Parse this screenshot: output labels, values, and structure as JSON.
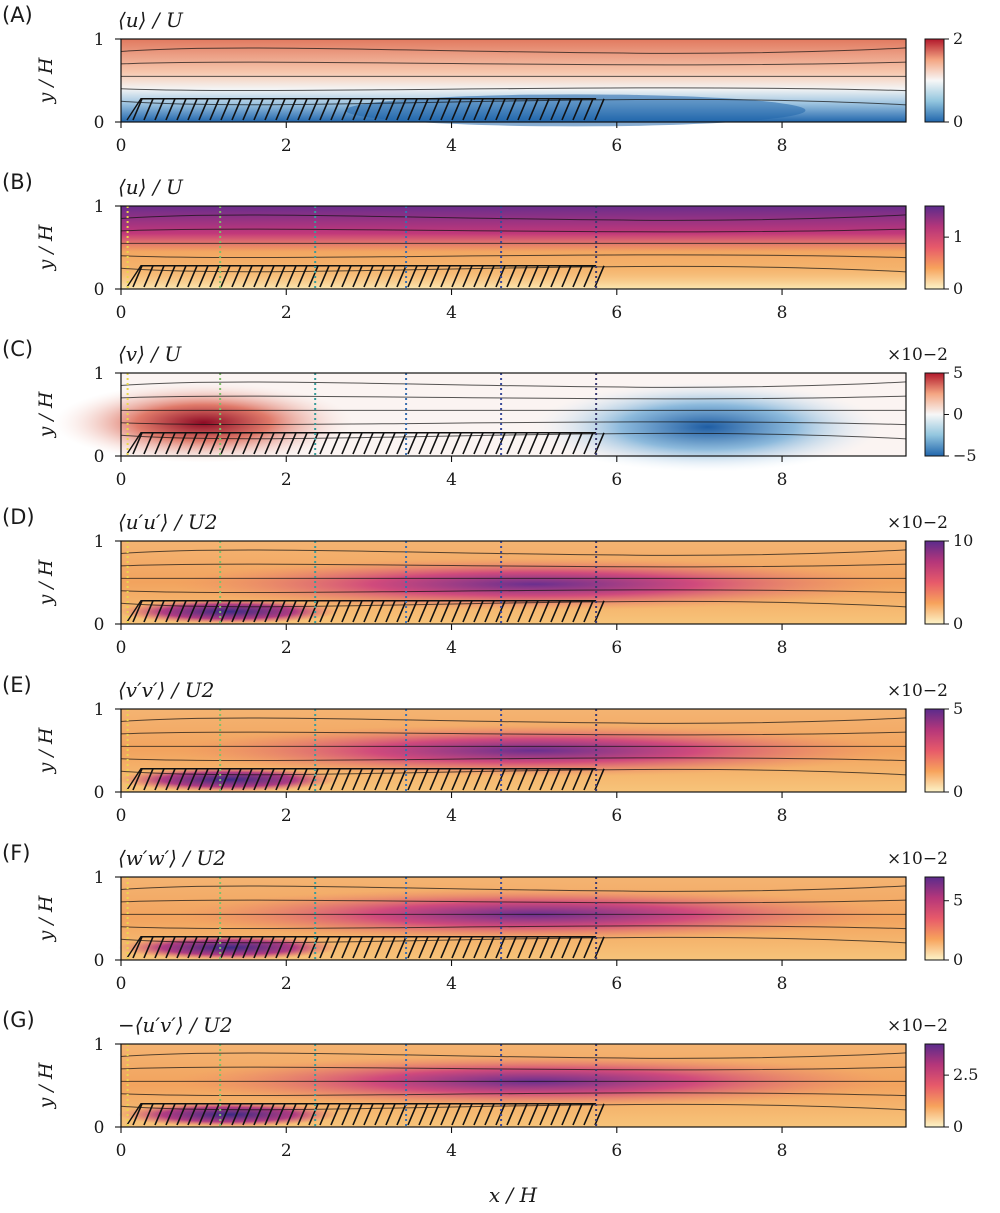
{
  "chart_data": {
    "type": "heatmap",
    "xlabel": "x / H",
    "x_ticks": [
      "0",
      "2",
      "4",
      "6",
      "8"
    ],
    "x_tick_values": [
      0,
      2,
      4,
      6,
      8
    ],
    "xlim": [
      0,
      9.5
    ],
    "ylim": [
      0,
      1
    ],
    "canopy_extent_x": [
      0,
      5.75
    ],
    "probe_lines_x": [
      0.08,
      1.2,
      2.35,
      3.45,
      4.6,
      5.75
    ],
    "probe_line_colors": [
      "#e8d84a",
      "#7fbf6a",
      "#3a9c9a",
      "#3a6fb0",
      "#3b4b9a",
      "#3a3a70"
    ],
    "panels": [
      {
        "id": "A",
        "panel_label": "(A)",
        "title": "⟨u⟩ / U",
        "ylabel": "y / H",
        "y_ticks": [
          "0",
          "1"
        ],
        "colormap": "RdBu_r",
        "colors": [
          "#2166ac",
          "#f7f7f7",
          "#b2182b"
        ],
        "colorbar_ticks": [
          "0",
          "2"
        ],
        "colorbar_range": [
          0,
          2
        ],
        "multiplier": "",
        "probe_lines": false
      },
      {
        "id": "B",
        "panel_label": "(B)",
        "title": "⟨u⟩ / U",
        "ylabel": "y / H",
        "y_ticks": [
          "0",
          "1"
        ],
        "colormap": "magma_r",
        "colors": [
          "#fcf3c8",
          "#f7a35c",
          "#e75a6a",
          "#b5367a",
          "#5b2b8c"
        ],
        "colorbar_ticks": [
          "0",
          "1"
        ],
        "colorbar_range": [
          0,
          1.6
        ],
        "multiplier": "",
        "probe_lines": true
      },
      {
        "id": "C",
        "panel_label": "(C)",
        "title": "⟨v⟩ / U",
        "ylabel": "y / H",
        "y_ticks": [
          "0",
          "1"
        ],
        "colormap": "RdBu_r",
        "colors": [
          "#2166ac",
          "#f7f7f7",
          "#b2182b"
        ],
        "colorbar_ticks": [
          "−5",
          "0",
          "5"
        ],
        "colorbar_range": [
          -5,
          5
        ],
        "multiplier": "×10−2",
        "probe_lines": true
      },
      {
        "id": "D",
        "panel_label": "(D)",
        "title": "⟨u′u′⟩ / U2",
        "ylabel": "y / H",
        "y_ticks": [
          "0",
          "1"
        ],
        "colormap": "magma_r",
        "colors": [
          "#fcf3c8",
          "#f7a35c",
          "#e75a6a",
          "#b5367a",
          "#5b2b8c"
        ],
        "colorbar_ticks": [
          "0",
          "10"
        ],
        "colorbar_range": [
          0,
          10
        ],
        "multiplier": "×10−2",
        "probe_lines": true
      },
      {
        "id": "E",
        "panel_label": "(E)",
        "title": "⟨v′v′⟩ / U2",
        "ylabel": "y / H",
        "y_ticks": [
          "0",
          "1"
        ],
        "colormap": "magma_r",
        "colors": [
          "#fcf3c8",
          "#f7a35c",
          "#e75a6a",
          "#b5367a",
          "#5b2b8c"
        ],
        "colorbar_ticks": [
          "0",
          "5"
        ],
        "colorbar_range": [
          0,
          5
        ],
        "multiplier": "×10−2",
        "probe_lines": true
      },
      {
        "id": "F",
        "panel_label": "(F)",
        "title": "⟨w′w′⟩ / U2",
        "ylabel": "y / H",
        "y_ticks": [
          "0",
          "1"
        ],
        "colormap": "magma_r",
        "colors": [
          "#fcf3c8",
          "#f7a35c",
          "#e75a6a",
          "#b5367a",
          "#5b2b8c"
        ],
        "colorbar_ticks": [
          "0",
          "5"
        ],
        "colorbar_range": [
          0,
          7
        ],
        "multiplier": "×10−2",
        "probe_lines": true
      },
      {
        "id": "G",
        "panel_label": "(G)",
        "title": "−⟨u′v′⟩ / U2",
        "ylabel": "y / H",
        "y_ticks": [
          "0",
          "1"
        ],
        "colormap": "magma_r",
        "colors": [
          "#fcf3c8",
          "#f7a35c",
          "#e75a6a",
          "#b5367a",
          "#5b2b8c"
        ],
        "colorbar_ticks": [
          "0",
          "2.5"
        ],
        "colorbar_range": [
          0,
          4
        ],
        "multiplier": "×10−2",
        "probe_lines": true
      }
    ]
  }
}
